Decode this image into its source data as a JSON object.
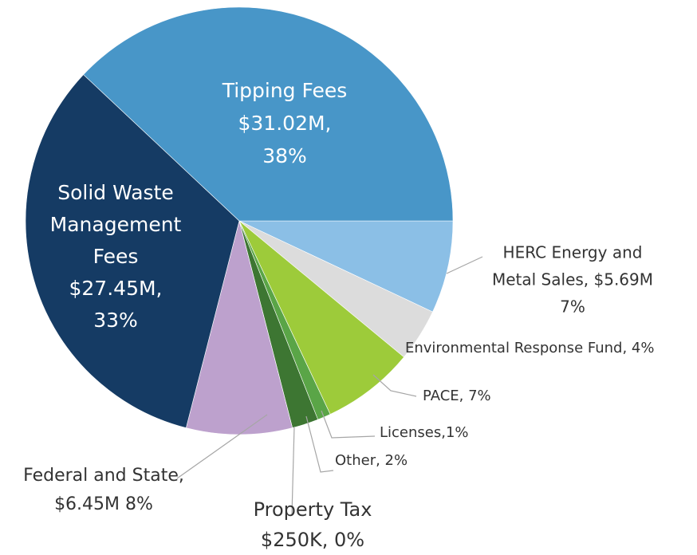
{
  "chart_data": {
    "type": "pie",
    "categories": [
      "HERC Energy and Metal Sales",
      "Environmental Response Fund",
      "PACE",
      "Licenses",
      "Other",
      "Property Tax",
      "Federal and State",
      "Solid Waste Management Fees",
      "Tipping Fees"
    ],
    "values": [
      7,
      4,
      7,
      1,
      2,
      0,
      8,
      33,
      38
    ],
    "value_labels": [
      [
        "HERC Energy and",
        "Metal Sales, $5.69M",
        "7%"
      ],
      [
        "Environmental Response Fund, 4%"
      ],
      [
        "PACE, 7%"
      ],
      [
        "Licenses,1%"
      ],
      [
        "Other, 2%"
      ],
      [
        "Property Tax",
        "$250K, 0%"
      ],
      [
        "Federal and State,",
        "$6.45M 8%"
      ],
      [
        "Solid Waste",
        "Management",
        "Fees",
        "$27.45M,",
        "33%"
      ],
      [
        "Tipping Fees",
        "$31.02M,",
        "38%"
      ]
    ],
    "colors": [
      "#8bbfe6",
      "#dcdcdc",
      "#9dcb3a",
      "#5aa547",
      "#3d7632",
      "#2b4b20",
      "#bda1cd",
      "#153b64",
      "#4896c8"
    ]
  }
}
